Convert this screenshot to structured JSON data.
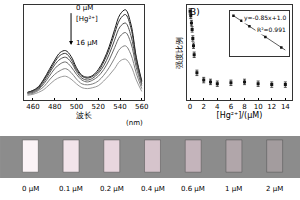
{
  "chart_data": [
    {
      "type": "line",
      "x_label": "波长",
      "x_unit": "(nm)",
      "x": [
        455,
        460,
        465,
        470,
        475,
        480,
        485,
        490,
        495,
        500,
        505,
        510,
        515,
        520,
        525,
        530,
        535,
        540,
        545,
        550,
        555,
        560
      ],
      "series": [
        {
          "color": "#1a1a1a",
          "values": [
            0.08,
            0.1,
            0.14,
            0.22,
            0.32,
            0.42,
            0.5,
            0.52,
            0.46,
            0.34,
            0.26,
            0.24,
            0.26,
            0.32,
            0.42,
            0.56,
            0.74,
            0.9,
            0.95,
            0.8,
            0.45,
            0.2
          ]
        },
        {
          "color": "#333333",
          "values": [
            0.08,
            0.1,
            0.13,
            0.21,
            0.3,
            0.4,
            0.47,
            0.49,
            0.43,
            0.32,
            0.25,
            0.23,
            0.25,
            0.3,
            0.4,
            0.53,
            0.7,
            0.85,
            0.9,
            0.76,
            0.43,
            0.19
          ]
        },
        {
          "color": "#4d4d4d",
          "values": [
            0.07,
            0.09,
            0.12,
            0.19,
            0.28,
            0.37,
            0.43,
            0.45,
            0.4,
            0.3,
            0.23,
            0.21,
            0.23,
            0.28,
            0.36,
            0.48,
            0.63,
            0.77,
            0.81,
            0.68,
            0.39,
            0.17
          ]
        },
        {
          "color": "#666666",
          "values": [
            0.07,
            0.08,
            0.11,
            0.17,
            0.25,
            0.33,
            0.38,
            0.4,
            0.35,
            0.27,
            0.21,
            0.19,
            0.21,
            0.25,
            0.32,
            0.42,
            0.55,
            0.67,
            0.71,
            0.6,
            0.34,
            0.15
          ]
        },
        {
          "color": "#808080",
          "values": [
            0.06,
            0.07,
            0.1,
            0.14,
            0.21,
            0.27,
            0.31,
            0.33,
            0.29,
            0.22,
            0.17,
            0.16,
            0.17,
            0.2,
            0.26,
            0.34,
            0.44,
            0.54,
            0.57,
            0.48,
            0.28,
            0.12
          ]
        },
        {
          "color": "#999999",
          "values": [
            0.05,
            0.06,
            0.08,
            0.11,
            0.16,
            0.21,
            0.24,
            0.25,
            0.22,
            0.17,
            0.13,
            0.12,
            0.13,
            0.15,
            0.2,
            0.26,
            0.33,
            0.41,
            0.43,
            0.36,
            0.21,
            0.09
          ]
        }
      ],
      "xlim": [
        452,
        562
      ],
      "ylim": [
        0,
        1
      ],
      "xticks": [
        460,
        480,
        500,
        520,
        540,
        560
      ],
      "tick_labels": "x",
      "annotations": [
        "0 μM",
        "[Hg²⁺]",
        "16 μM"
      ]
    },
    {
      "type": "scatter",
      "title": "B)",
      "x_label": "[Hg²⁺]/(μM)",
      "y_label": "强度比例",
      "x": [
        0,
        0.1,
        0.2,
        0.3,
        0.4,
        0.5,
        0.6,
        1,
        2,
        3,
        4,
        6,
        8,
        10,
        12,
        14
      ],
      "values": [
        0.98,
        0.93,
        0.85,
        0.78,
        0.68,
        0.6,
        0.5,
        0.3,
        0.22,
        0.2,
        0.18,
        0.19,
        0.2,
        0.18,
        0.17,
        0.17
      ],
      "errors": [
        0.03,
        0.03,
        0.03,
        0.03,
        0.03,
        0.03,
        0.03,
        0.03,
        0.03,
        0.03,
        0.03,
        0.03,
        0.03,
        0.03,
        0.03,
        0.03
      ],
      "color": "#111111",
      "marker": "square",
      "xlim": [
        -0.5,
        15
      ],
      "ylim": [
        0,
        1.05
      ],
      "xticks": [
        0,
        2,
        4,
        6,
        8,
        10,
        12,
        14
      ],
      "tick_labels": "x"
    },
    {
      "type": "scatter",
      "x": [
        0,
        0.1,
        0.2,
        0.3,
        0.4,
        0.6
      ],
      "values": [
        1.0,
        0.92,
        0.83,
        0.75,
        0.66,
        0.49
      ],
      "fit": {
        "x": [
          0,
          0.65
        ],
        "values": [
          1.0,
          0.45
        ]
      },
      "color": "#111111",
      "marker": "square",
      "xlim": [
        -0.05,
        0.7
      ],
      "ylim": [
        0.35,
        1.08
      ],
      "tick_labels": false,
      "annotations": [
        "y=-0.85x+1.0",
        "R²=0.991"
      ]
    }
  ],
  "photo": {
    "labels": [
      "0 μM",
      "0.1 μM",
      "0.2 μM",
      "0.4 μM",
      "0.6 μM",
      "1 μM",
      "2 μM"
    ]
  }
}
